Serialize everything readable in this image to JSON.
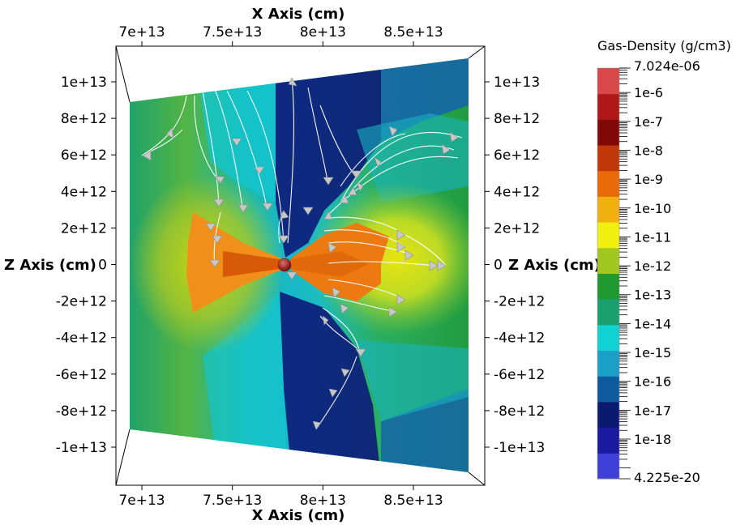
{
  "chart_data": {
    "type": "heatmap",
    "variable": "Gas-Density (g/cm3)",
    "scale": "log",
    "x_axis": {
      "label": "X Axis (cm)",
      "ticks": [
        70000000000000.0,
        75000000000000.0,
        80000000000000.0,
        85000000000000.0
      ],
      "tick_labels": [
        "7e+13",
        "7.5e+13",
        "8e+13",
        "8.5e+13"
      ],
      "range": [
        69000000000000.0,
        89000000000000.0
      ]
    },
    "z_axis": {
      "label": "Z Axis (cm)",
      "ticks": [
        10000000000000.0,
        8000000000000.0,
        6000000000000.0,
        4000000000000.0,
        2000000000000.0,
        0,
        -2000000000000.0,
        -4000000000000.0,
        -6000000000000.0,
        -8000000000000.0,
        -10000000000000.0
      ],
      "tick_labels": [
        "1e+13",
        "8e+12",
        "6e+12",
        "4e+12",
        "2e+12",
        "0",
        "-2e+12",
        "-4e+12",
        "-6e+12",
        "-8e+12",
        "-1e+13"
      ],
      "range": [
        -12000000000000.0,
        12000000000000.0
      ]
    },
    "colorbar": {
      "title": "Gas-Density (g/cm3)",
      "max_label": "7.024e-06",
      "min_label": "4.225e-20",
      "max": 7.024e-06,
      "min": 4.225e-20,
      "labels": [
        "1e-6",
        "1e-7",
        "1e-8",
        "1e-9",
        "1e-10",
        "1e-11",
        "1e-12",
        "1e-13",
        "1e-14",
        "1e-15",
        "1e-16",
        "1e-17",
        "1e-18"
      ],
      "colors": [
        "#4040d8",
        "#1a1aa0",
        "#0a1a6e",
        "#0d5a9e",
        "#1aa0c8",
        "#10d2d2",
        "#1aa070",
        "#1e9a30",
        "#a0c820",
        "#f0f010",
        "#f0b010",
        "#e86a08",
        "#c03808",
        "#800808",
        "#b01818",
        "#d84848"
      ]
    },
    "annotations": [
      "streamlines with arrow glyphs",
      "central sphere at origin"
    ]
  }
}
